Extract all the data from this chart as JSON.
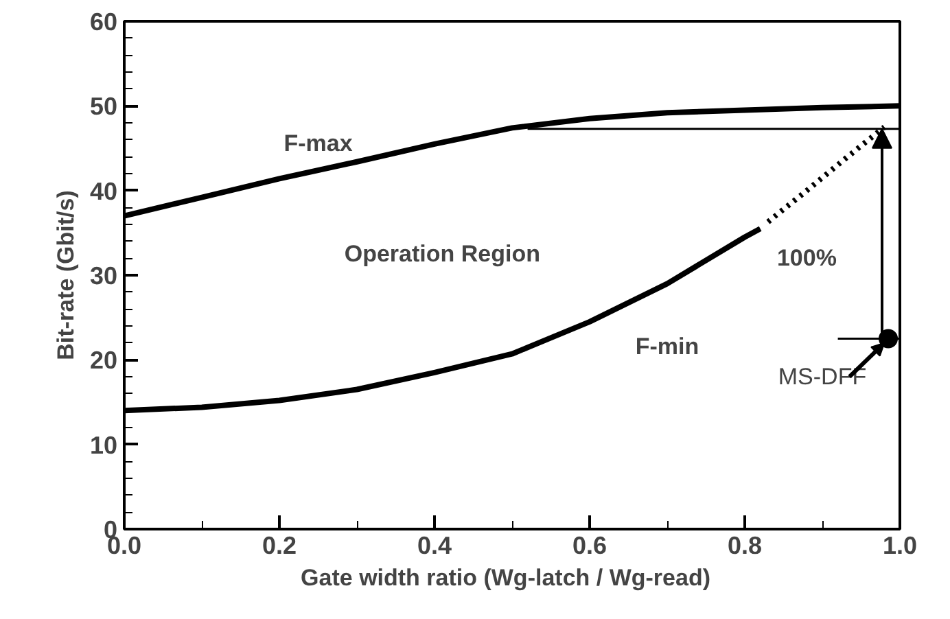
{
  "chart_data": {
    "type": "line",
    "xlabel": "Gate width ratio   (Wg-latch / Wg-read)",
    "ylabel": "Bit-rate (Gbit/s)",
    "xlim": [
      0,
      1
    ],
    "ylim": [
      0,
      60
    ],
    "xticks": [
      {
        "value": 0,
        "label": "0.0"
      },
      {
        "value": 0.2,
        "label": "0.2"
      },
      {
        "value": 0.4,
        "label": "0.4"
      },
      {
        "value": 0.6,
        "label": "0.6"
      },
      {
        "value": 0.8,
        "label": "0.8"
      },
      {
        "value": 1,
        "label": "1.0"
      }
    ],
    "yticks": [
      0,
      10,
      20,
      30,
      40,
      50,
      60
    ],
    "grid": false,
    "marker": "none",
    "series": [
      {
        "color": "#000000",
        "x": [
          0,
          0.1,
          0.2,
          0.3,
          0.4,
          0.5,
          0.6,
          0.7,
          0.8,
          0.9,
          1.0
        ],
        "values": [
          37,
          39.2,
          41.4,
          43.4,
          45.5,
          47.4,
          48.5,
          49.2,
          49.5,
          49.8,
          50
        ]
      },
      {
        "color": "#000000",
        "x": [
          0,
          0.1,
          0.2,
          0.3,
          0.4,
          0.5,
          0.6,
          0.7,
          0.8,
          0.82
        ],
        "values": [
          14,
          14.4,
          15.2,
          16.5,
          18.5,
          20.7,
          24.5,
          29,
          34.5,
          35.5
        ]
      },
      {
        "color": "#000000",
        "line_style": "dotted",
        "x": [
          0.83,
          0.88,
          0.93,
          0.98
        ],
        "values": [
          36.3,
          40,
          43.8,
          47.5
        ]
      },
      {
        "type": "scatter",
        "marker": "circle",
        "color": "#000000",
        "x": [
          0.985
        ],
        "values": [
          22.5
        ]
      }
    ],
    "ref_lines": [
      {
        "axis": "y",
        "value": 47.3
      },
      {
        "axis": "y",
        "value": 22.5
      }
    ],
    "annotations": [
      "F-max",
      "F-min",
      "Operation Region",
      "100%",
      {
        "text": "MS-DFF",
        "x": 0.985,
        "y": 22.5
      }
    ]
  }
}
